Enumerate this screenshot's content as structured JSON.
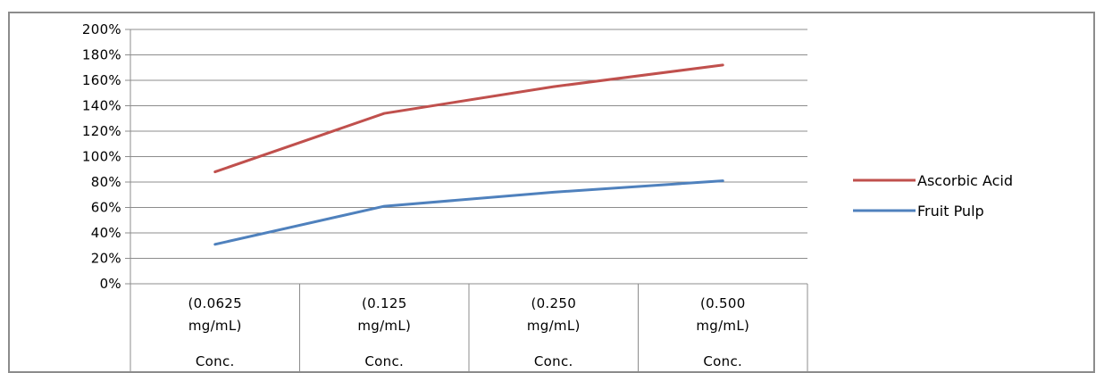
{
  "chart_data": {
    "type": "line",
    "categories": [
      [
        "(0.0625",
        "mg/mL)",
        "Conc."
      ],
      [
        "(0.125",
        "mg/mL)",
        "Conc."
      ],
      [
        "(0.250",
        "mg/mL)",
        "Conc."
      ],
      [
        "(0.500",
        "mg/mL)",
        "Conc."
      ]
    ],
    "series": [
      {
        "name": "Ascorbic Acid",
        "values": [
          88,
          134,
          155,
          172
        ],
        "color": "#c0504d"
      },
      {
        "name": "Fruit Pulp",
        "values": [
          31,
          61,
          72,
          81
        ],
        "color": "#4f81bd"
      }
    ],
    "ylim": [
      0,
      200
    ],
    "ytick_step": 20,
    "ytick_format": "percent",
    "title": "",
    "xlabel": "",
    "ylabel": "",
    "grid": true,
    "legend_position": "right"
  }
}
